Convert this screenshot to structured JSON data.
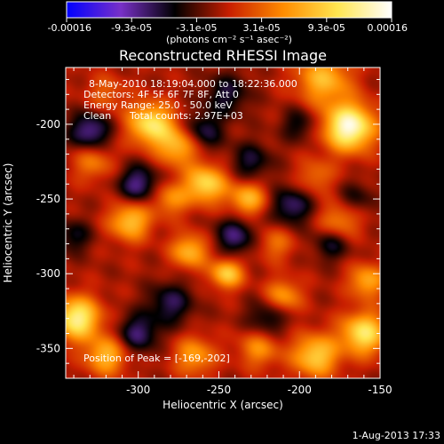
{
  "chart_data": {
    "type": "heatmap",
    "title": "Reconstructed RHESSI Image",
    "xlabel": "Heliocentric X (arcsec)",
    "ylabel": "Heliocentric Y (arcsec)",
    "xlim": [
      -345,
      -150
    ],
    "ylim": [
      -370,
      -162
    ],
    "xticks": [
      -300,
      -250,
      -200,
      -150
    ],
    "yticks": [
      -350,
      -300,
      -250,
      -200
    ],
    "colorbar": {
      "range": [
        -0.00016,
        0.00016
      ],
      "tick_labels": [
        "-0.00016",
        "-9.3e-05",
        "-3.1e-05",
        "3.1e-05",
        "9.3e-05",
        "0.00016"
      ],
      "unit_label": "(photons cm⁻² s⁻¹ asec⁻²)",
      "colormap": [
        "#0000ff",
        "#7830c8",
        "#000000",
        "#c81e00",
        "#ff8c00",
        "#ffe650",
        "#ffffff"
      ]
    },
    "annotations": {
      "time_range": "8-May-2010 18:19:04.000 to 18:22:36.000",
      "detectors": "Detectors: 4F 5F 6F 7F 8F, Att 0",
      "energy_range": "Energy Range: 25.0 - 50.0 keV",
      "algorithm": "Clean",
      "total_counts": "Total counts: 2.97E+03",
      "peak_position": "Position of Peak = [-169,-202]"
    },
    "peak": {
      "x": -169,
      "y": -202
    },
    "sources": [
      {
        "x": -169,
        "y": -202,
        "amp": 1.0,
        "sigma": 11
      },
      {
        "x": -185,
        "y": -170,
        "amp": 0.55,
        "sigma": 12
      },
      {
        "x": -292,
        "y": -200,
        "amp": 0.75,
        "sigma": 10
      },
      {
        "x": -275,
        "y": -215,
        "amp": 0.55,
        "sigma": 9
      },
      {
        "x": -258,
        "y": -240,
        "amp": 0.7,
        "sigma": 9
      },
      {
        "x": -232,
        "y": -250,
        "amp": 0.55,
        "sigma": 8
      },
      {
        "x": -280,
        "y": -250,
        "amp": 0.4,
        "sigma": 8
      },
      {
        "x": -305,
        "y": -265,
        "amp": 0.6,
        "sigma": 9
      },
      {
        "x": -268,
        "y": -285,
        "amp": 0.55,
        "sigma": 8
      },
      {
        "x": -245,
        "y": -300,
        "amp": 0.65,
        "sigma": 7
      },
      {
        "x": -210,
        "y": -315,
        "amp": 0.45,
        "sigma": 8
      },
      {
        "x": -338,
        "y": -330,
        "amp": 0.85,
        "sigma": 10
      },
      {
        "x": -320,
        "y": -355,
        "amp": 0.55,
        "sigma": 9
      },
      {
        "x": -265,
        "y": -355,
        "amp": 0.45,
        "sigma": 9
      },
      {
        "x": -225,
        "y": -350,
        "amp": 0.4,
        "sigma": 9
      },
      {
        "x": -190,
        "y": -355,
        "amp": 0.65,
        "sigma": 10
      },
      {
        "x": -160,
        "y": -340,
        "amp": 0.75,
        "sigma": 10
      },
      {
        "x": -158,
        "y": -305,
        "amp": 0.5,
        "sigma": 8
      },
      {
        "x": -175,
        "y": -265,
        "amp": 0.4,
        "sigma": 9
      },
      {
        "x": -190,
        "y": -235,
        "amp": 0.3,
        "sigma": 8
      },
      {
        "x": -328,
        "y": -225,
        "amp": 0.35,
        "sigma": 9
      },
      {
        "x": -215,
        "y": -280,
        "amp": 0.3,
        "sigma": 8
      },
      {
        "x": -320,
        "y": -180,
        "amp": 0.25,
        "sigma": 9
      },
      {
        "x": -330,
        "y": -205,
        "amp": -0.55,
        "sigma": 9
      },
      {
        "x": -300,
        "y": -240,
        "amp": -0.5,
        "sigma": 9
      },
      {
        "x": -260,
        "y": -205,
        "amp": -0.4,
        "sigma": 9
      },
      {
        "x": -230,
        "y": -225,
        "amp": -0.35,
        "sigma": 9
      },
      {
        "x": -205,
        "y": -255,
        "amp": -0.45,
        "sigma": 9
      },
      {
        "x": -180,
        "y": -280,
        "amp": -0.35,
        "sigma": 8
      },
      {
        "x": -240,
        "y": -275,
        "amp": -0.45,
        "sigma": 9
      },
      {
        "x": -280,
        "y": -320,
        "amp": -0.4,
        "sigma": 10
      },
      {
        "x": -220,
        "y": -330,
        "amp": -0.35,
        "sigma": 9
      },
      {
        "x": -300,
        "y": -340,
        "amp": -0.45,
        "sigma": 9
      },
      {
        "x": -245,
        "y": -180,
        "amp": -0.35,
        "sigma": 10
      },
      {
        "x": -200,
        "y": -200,
        "amp": -0.3,
        "sigma": 8
      },
      {
        "x": -165,
        "y": -250,
        "amp": -0.25,
        "sigma": 8
      },
      {
        "x": -340,
        "y": -275,
        "amp": -0.3,
        "sigma": 8
      }
    ]
  },
  "footer": {
    "timestamp": "1-Aug-2013 17:33"
  }
}
